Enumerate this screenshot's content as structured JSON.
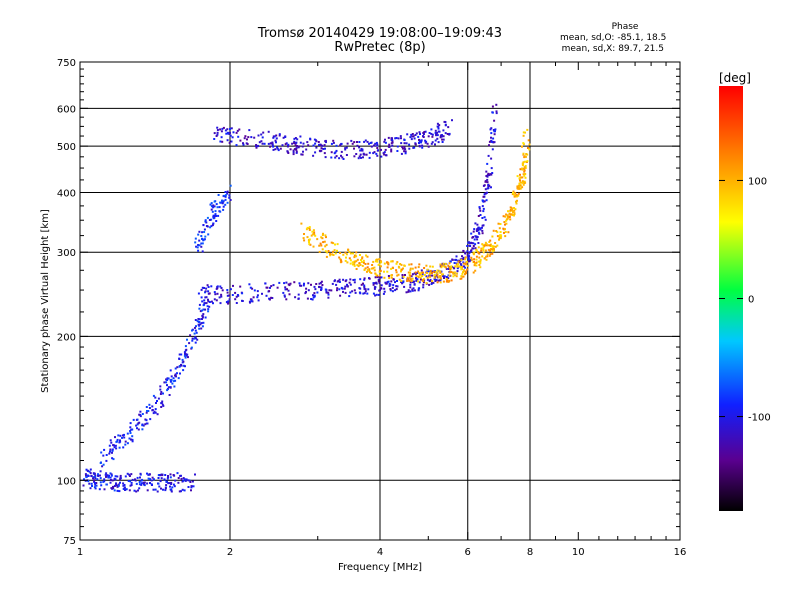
{
  "header": {
    "title_line1": "Tromsø 20140429 19:08:00–19:09:43",
    "title_line2": "RwPretec (8p)"
  },
  "stats": {
    "heading": "Phase",
    "line_o": "mean, sd,O: -85.1, 18.5",
    "line_x": "mean, sd,X:  89.7, 21.5"
  },
  "chart_data": {
    "type": "scatter",
    "xlabel": "Frequency [MHz]",
    "ylabel": "Stationary phase Virtual Height [km]",
    "x_scale": "log",
    "y_scale": "log",
    "xlim": [
      1,
      16
    ],
    "ylim": [
      75,
      750
    ],
    "x_ticks": [
      1,
      2,
      4,
      6,
      8,
      10,
      16
    ],
    "x_tick_labels": [
      "1",
      "2",
      "4",
      "6",
      "8",
      "10",
      "16"
    ],
    "x_gridlines": [
      2,
      4,
      6,
      8
    ],
    "y_ticks": [
      75,
      100,
      200,
      300,
      400,
      500,
      600,
      750
    ],
    "y_tick_labels": [
      "75",
      "100",
      "200",
      "300",
      "400",
      "500",
      "600",
      "750"
    ],
    "y_gridlines": [
      100,
      200,
      300,
      400,
      500,
      600
    ],
    "colorbar": {
      "label": "[deg]",
      "range": [
        -180,
        180
      ],
      "tick_values": [
        100,
        0,
        -100
      ],
      "tick_labels": [
        "100",
        "0",
        "-100"
      ]
    },
    "traces": [
      {
        "description": "E-region trace, O-mode",
        "freq_mhz": [
          1.02,
          1.1,
          1.2,
          1.35,
          1.5,
          1.7
        ],
        "height_km": [
          101,
          100,
          99,
          99,
          99,
          99
        ],
        "phase_deg": -100
      },
      {
        "description": "F1 rise, O-mode",
        "freq_mhz": [
          1.1,
          1.25,
          1.4,
          1.55,
          1.7,
          1.8
        ],
        "height_km": [
          110,
          125,
          140,
          165,
          200,
          240
        ],
        "phase_deg": -95
      },
      {
        "description": "F-region O-mode trace",
        "freq_mhz": [
          1.75,
          2.0,
          2.5,
          3.0,
          3.5,
          4.0,
          4.5,
          5.0,
          5.5,
          6.0,
          6.3,
          6.6,
          6.8
        ],
        "height_km": [
          245,
          245,
          248,
          250,
          252,
          255,
          258,
          265,
          275,
          295,
          330,
          420,
          600
        ],
        "phase_deg": -110
      },
      {
        "description": "F-region X-mode trace",
        "freq_mhz": [
          2.8,
          3.2,
          3.6,
          4.0,
          4.5,
          5.0,
          5.5,
          6.0,
          6.5,
          7.0,
          7.4,
          7.7,
          7.9
        ],
        "height_km": [
          330,
          305,
          288,
          278,
          272,
          270,
          272,
          280,
          300,
          330,
          370,
          430,
          520
        ],
        "phase_deg": 100
      },
      {
        "description": "Multi-hop F echo",
        "freq_mhz": [
          1.85,
          2.2,
          2.6,
          3.0,
          3.5,
          4.0,
          4.5,
          5.0,
          5.5
        ],
        "height_km": [
          530,
          520,
          505,
          495,
          490,
          495,
          505,
          520,
          545
        ],
        "phase_deg": -110
      },
      {
        "description": "Spread F cluster",
        "freq_mhz": [
          1.7,
          1.85,
          2.0
        ],
        "height_km": [
          300,
          360,
          400
        ],
        "phase_deg": -90
      }
    ]
  }
}
